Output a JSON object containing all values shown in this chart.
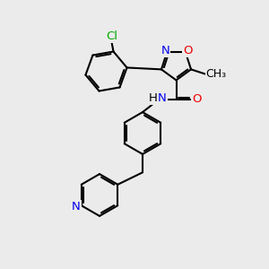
{
  "background_color": "#ebebeb",
  "atom_colors": {
    "C": "#000000",
    "N": "#0000ee",
    "O": "#ee0000",
    "Cl": "#00aa00",
    "H": "#000000"
  },
  "bond_color": "#000000",
  "bond_lw": 1.5,
  "font_size": 9.5
}
